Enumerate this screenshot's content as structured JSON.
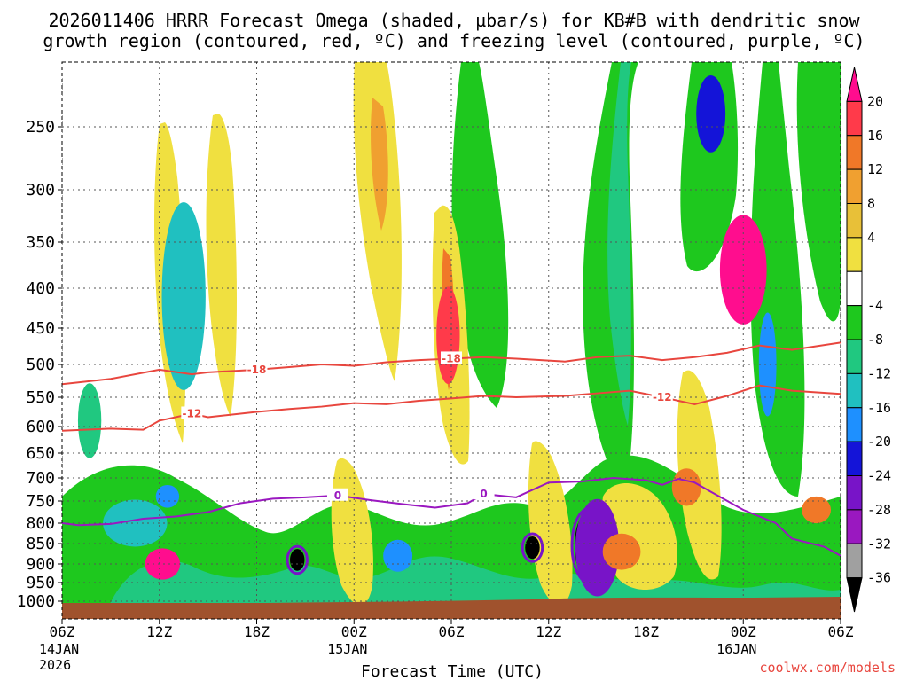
{
  "chart_data": {
    "type": "heatmap",
    "title_line1": "2026011406 HRRR Forecast Omega (shaded, µbar/s) for KB#B with dendritic snow",
    "title_line2": "growth region (contoured, red, ºC) and freezing level (contoured, purple, ºC)",
    "xlabel": "Forecast Time (UTC)",
    "ylabel": "",
    "credit": "coolwx.com/models",
    "x_range_hours": [
      0,
      48
    ],
    "y_range_hpa": [
      200,
      1025
    ],
    "x_ticks": [
      {
        "hour": 0,
        "label": "06Z",
        "sub1": "14JAN",
        "sub2": "2026"
      },
      {
        "hour": 6,
        "label": "12Z",
        "sub1": "",
        "sub2": ""
      },
      {
        "hour": 12,
        "label": "18Z",
        "sub1": "",
        "sub2": ""
      },
      {
        "hour": 18,
        "label": "00Z",
        "sub1": "15JAN",
        "sub2": ""
      },
      {
        "hour": 24,
        "label": "06Z",
        "sub1": "",
        "sub2": ""
      },
      {
        "hour": 30,
        "label": "12Z",
        "sub1": "",
        "sub2": ""
      },
      {
        "hour": 36,
        "label": "18Z",
        "sub1": "",
        "sub2": ""
      },
      {
        "hour": 42,
        "label": "00Z",
        "sub1": "16JAN",
        "sub2": ""
      },
      {
        "hour": 48,
        "label": "06Z",
        "sub1": "",
        "sub2": ""
      }
    ],
    "y_ticks": [
      250,
      300,
      350,
      400,
      450,
      500,
      550,
      600,
      650,
      700,
      750,
      800,
      850,
      900,
      950,
      1000
    ],
    "legend": {
      "position": "right",
      "labels": [
        "20",
        "16",
        "12",
        "8",
        "4",
        "-4",
        "-8",
        "-12",
        "-16",
        "-20",
        "-24",
        "-28",
        "-32",
        "-36"
      ],
      "colors": [
        "#ff0d8e",
        "#ff3a4a",
        "#f07828",
        "#f0a030",
        "#e8c038",
        "#f0e040",
        "#ffffff",
        "#1ec81e",
        "#20c880",
        "#20c0c0",
        "#1e90ff",
        "#1414d8",
        "#7814c8",
        "#9a18c0",
        "#a0a0a0",
        "#000000"
      ]
    },
    "contours": [
      {
        "name": "dendritic-upper",
        "label": "-18",
        "color": "#e8463e",
        "points": [
          [
            0,
            530
          ],
          [
            3,
            522
          ],
          [
            6,
            508
          ],
          [
            8,
            515
          ],
          [
            9,
            512
          ],
          [
            12,
            508
          ],
          [
            14,
            504
          ],
          [
            16,
            500
          ],
          [
            18,
            502
          ],
          [
            20,
            497
          ],
          [
            22,
            494
          ],
          [
            24,
            492
          ],
          [
            26,
            490
          ],
          [
            28,
            492
          ],
          [
            31,
            496
          ],
          [
            33,
            490
          ],
          [
            35,
            488
          ],
          [
            37,
            494
          ],
          [
            39,
            490
          ],
          [
            41,
            484
          ],
          [
            43,
            474
          ],
          [
            45,
            480
          ],
          [
            48,
            470
          ]
        ]
      },
      {
        "name": "dendritic-lower",
        "label": "-12",
        "color": "#e8463e",
        "points": [
          [
            0,
            608
          ],
          [
            3,
            604
          ],
          [
            5,
            606
          ],
          [
            6,
            590
          ],
          [
            8,
            578
          ],
          [
            9,
            584
          ],
          [
            12,
            575
          ],
          [
            14,
            570
          ],
          [
            16,
            566
          ],
          [
            18,
            560
          ],
          [
            20,
            562
          ],
          [
            22,
            556
          ],
          [
            24,
            552
          ],
          [
            26,
            548
          ],
          [
            28,
            550
          ],
          [
            31,
            548
          ],
          [
            33,
            544
          ],
          [
            35,
            540
          ],
          [
            37,
            550
          ],
          [
            39,
            562
          ],
          [
            41,
            548
          ],
          [
            43,
            532
          ],
          [
            45,
            540
          ],
          [
            48,
            545
          ]
        ]
      },
      {
        "name": "freezing-level",
        "label": "0",
        "color": "#9a18c0",
        "points": [
          [
            0,
            800
          ],
          [
            1,
            805
          ],
          [
            3,
            802
          ],
          [
            5,
            790
          ],
          [
            7,
            785
          ],
          [
            9,
            775
          ],
          [
            11,
            755
          ],
          [
            13,
            745
          ],
          [
            15,
            742
          ],
          [
            17,
            738
          ],
          [
            19,
            748
          ],
          [
            21,
            757
          ],
          [
            23,
            765
          ],
          [
            25,
            755
          ],
          [
            26,
            735
          ],
          [
            28,
            742
          ],
          [
            30,
            710
          ],
          [
            32,
            708
          ],
          [
            34,
            700
          ],
          [
            36,
            705
          ],
          [
            37,
            715
          ],
          [
            38,
            702
          ],
          [
            39,
            710
          ],
          [
            40,
            730
          ],
          [
            42,
            770
          ],
          [
            44,
            800
          ],
          [
            45,
            838
          ],
          [
            47,
            858
          ],
          [
            48,
            880
          ]
        ]
      }
    ],
    "omega_blobs": [
      {
        "hour": 1.7,
        "hpa": 590,
        "wh": 0.8,
        "hp": 130,
        "value": -8
      },
      {
        "hour": 7.5,
        "hpa": 400,
        "wh": 0.9,
        "hp": 130,
        "value": -22
      },
      {
        "hour": 7.5,
        "hpa": 410,
        "wh": 1.5,
        "hp": 220,
        "value": -12
      },
      {
        "hour": 4.5,
        "hpa": 800,
        "wh": 2.2,
        "hp": 110,
        "value": -12
      },
      {
        "hour": 6.2,
        "hpa": 900,
        "wh": 1.2,
        "hp": 80,
        "value": 20
      },
      {
        "hour": 6.5,
        "hpa": 740,
        "wh": 0.8,
        "hp": 50,
        "value": -18
      },
      {
        "hour": 14.5,
        "hpa": 890,
        "wh": 0.5,
        "hp": 55,
        "value": -36
      },
      {
        "hour": 20.7,
        "hpa": 880,
        "wh": 1.0,
        "hp": 80,
        "value": -18
      },
      {
        "hour": 29.0,
        "hpa": 860,
        "wh": 0.5,
        "hp": 55,
        "value": -36
      },
      {
        "hour": 32.5,
        "hpa": 855,
        "wh": 1.0,
        "hp": 170,
        "value": -36
      },
      {
        "hour": 33.0,
        "hpa": 860,
        "wh": 1.5,
        "hp": 240,
        "value": -24
      },
      {
        "hour": 34.5,
        "hpa": 870,
        "wh": 1.3,
        "hp": 90,
        "value": 14
      },
      {
        "hour": 42.0,
        "hpa": 380,
        "wh": 1.6,
        "hp": 120,
        "value": 20
      },
      {
        "hour": 40.0,
        "hpa": 240,
        "wh": 1.0,
        "hp": 60,
        "value": -20
      },
      {
        "hour": 43.5,
        "hpa": 500,
        "wh": 0.6,
        "hp": 150,
        "value": -18
      },
      {
        "hour": 38.5,
        "hpa": 720,
        "wh": 1.0,
        "hp": 80,
        "value": 12
      },
      {
        "hour": 46.5,
        "hpa": 770,
        "wh": 1.0,
        "hp": 60,
        "value": 12
      },
      {
        "hour": 23.8,
        "hpa": 460,
        "wh": 0.8,
        "hp": 130,
        "value": 16
      }
    ]
  }
}
